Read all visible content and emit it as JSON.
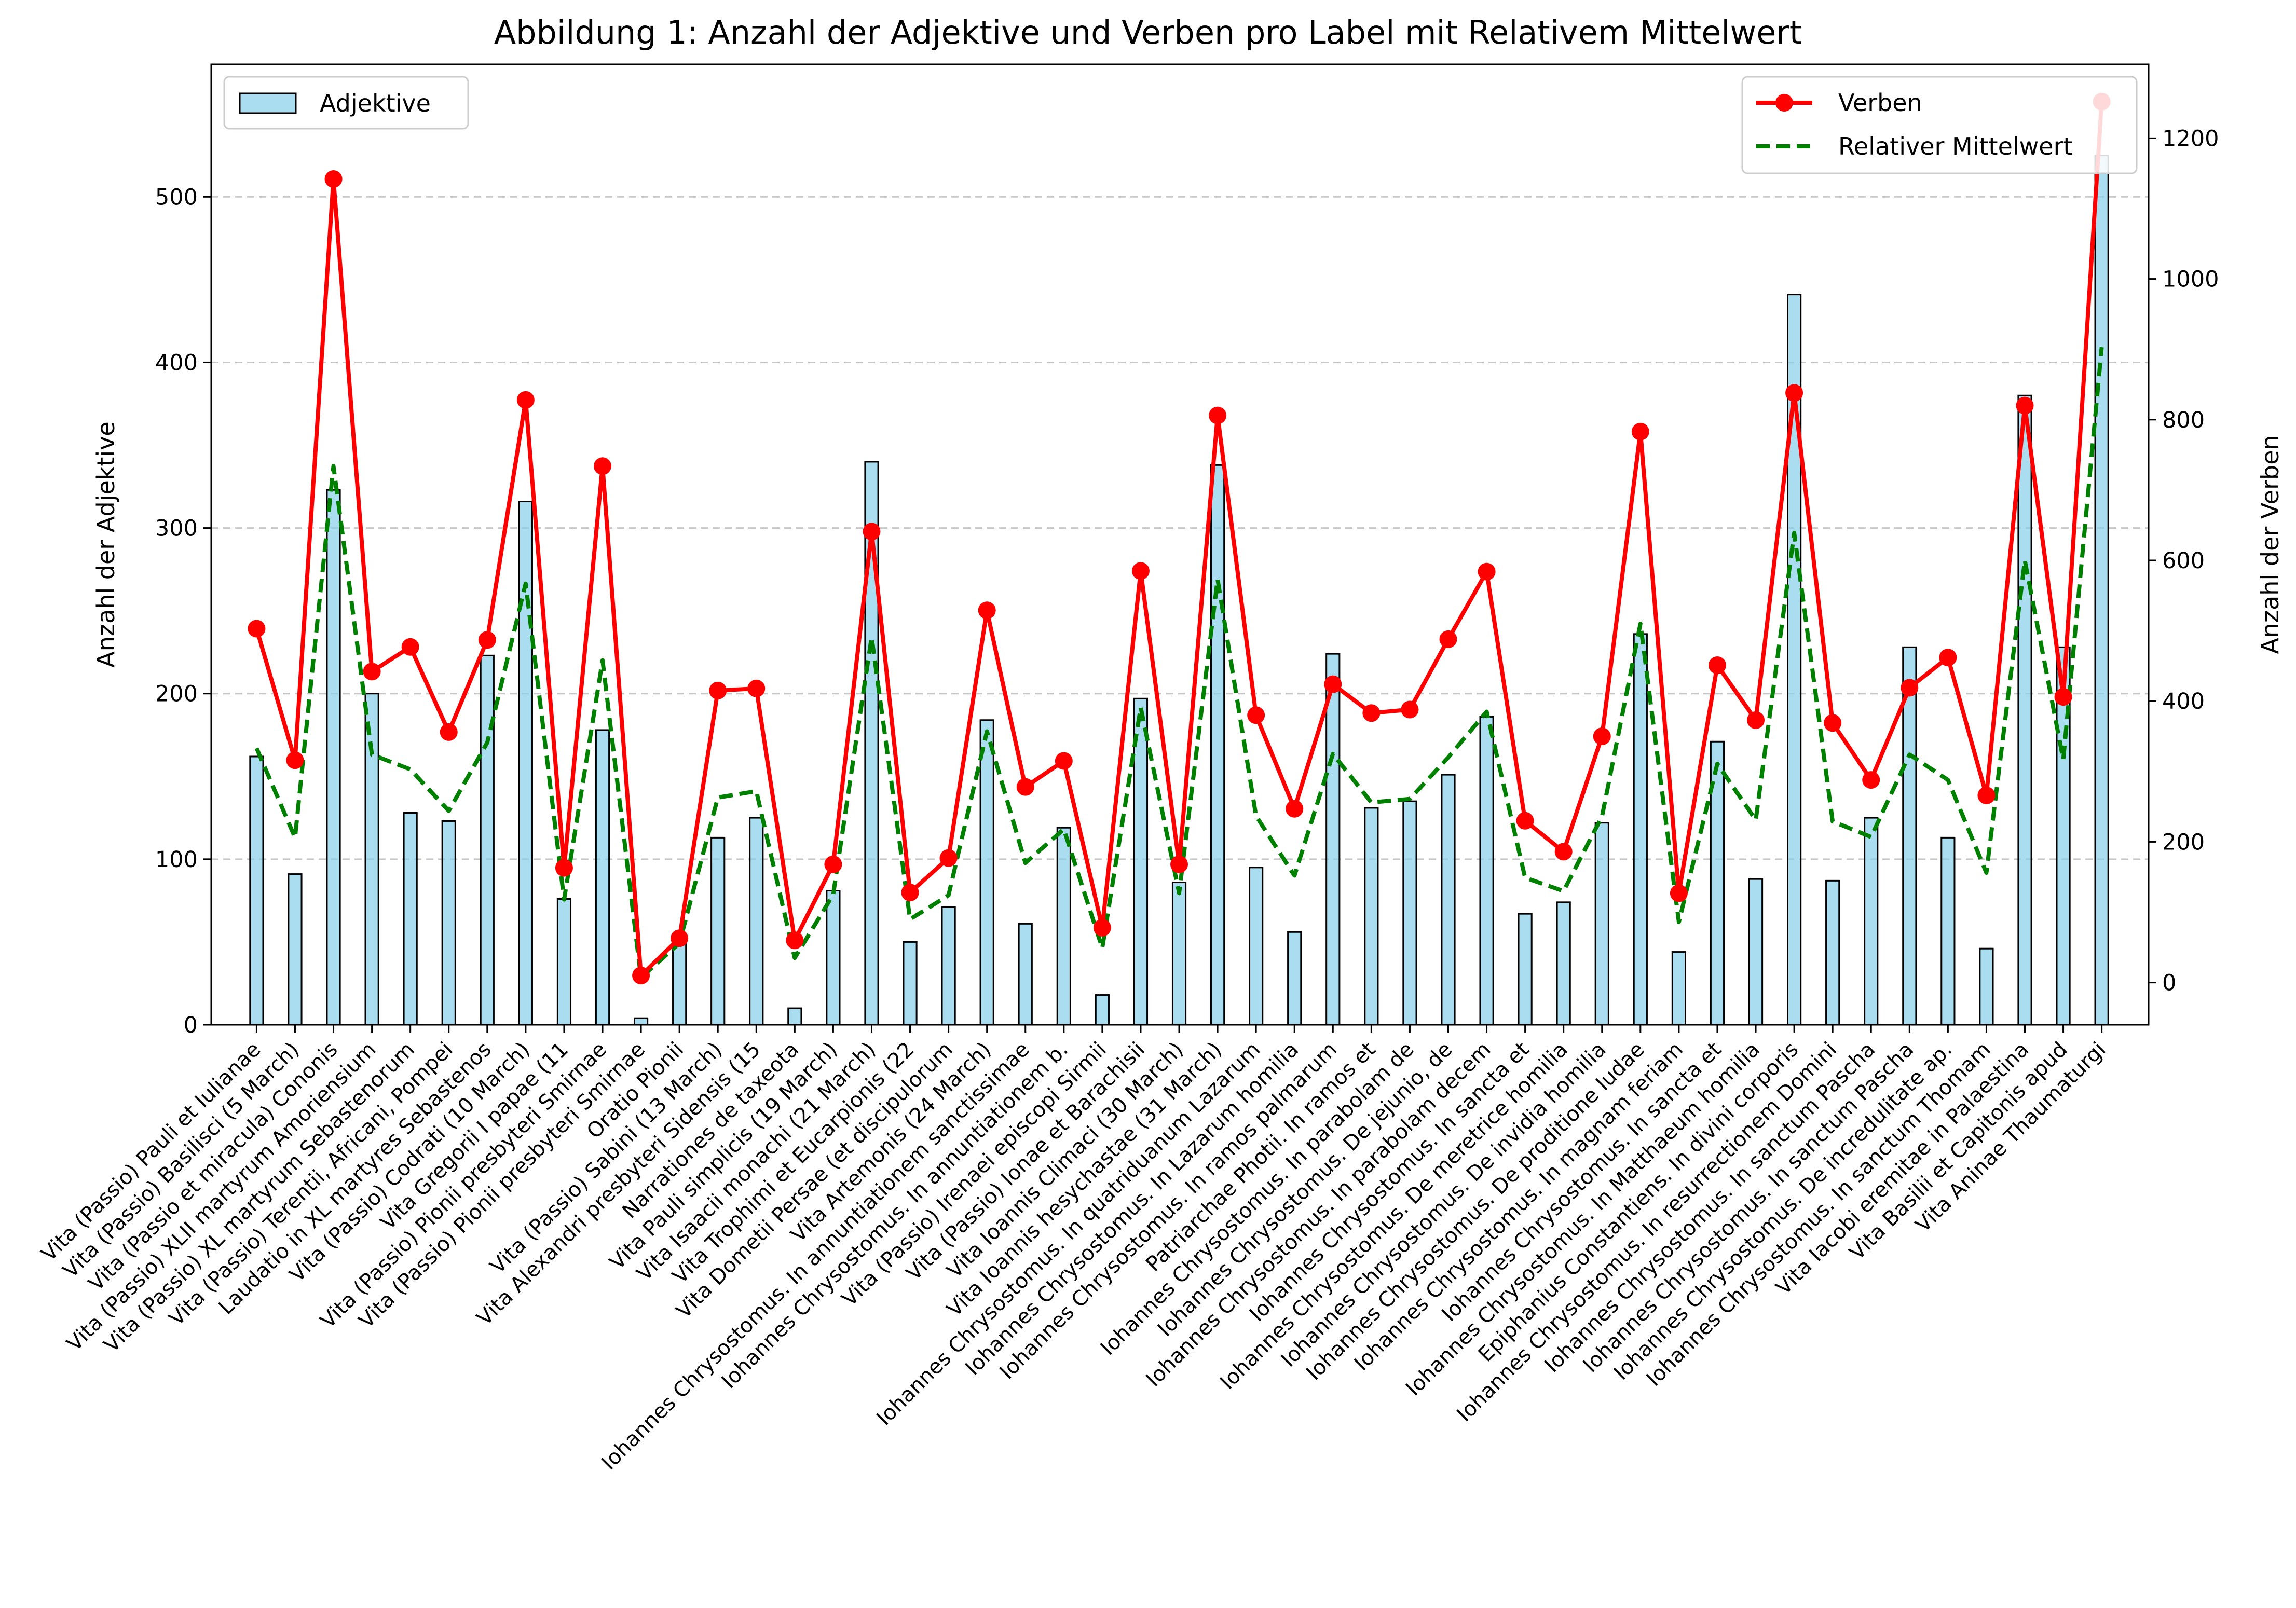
{
  "chart_data": {
    "type": "bar",
    "title": "Abbildung 1: Anzahl der Adjektive und Verben pro Label mit Relativem Mittelwert",
    "ylabel": "Anzahl der Adjektive",
    "y2label": "Anzahl der Verben",
    "ylim": [
      0,
      580
    ],
    "y2lim": [
      -60,
      1305
    ],
    "yticks": [
      0,
      100,
      200,
      300,
      400,
      500
    ],
    "y2ticks": [
      0,
      200,
      400,
      600,
      800,
      1000,
      1200
    ],
    "grid": "y-dashed",
    "legend_left": "top-left",
    "legend_right": "top-right",
    "categories": [
      "Vita (Passio) Pauli et Iulianae",
      "Vita (Passio) Basilisci (5 March)",
      "Vita (Passio et miracula) Cononis",
      "Vita (Passio) XLII martyrum Amoriensium",
      "Vita (Passio) XL martyrum Sebastenorum",
      "Vita (Passio) Terentii, Africani, Pompei",
      "Laudatio in XL martyres Sebastenos",
      "Vita (Passio) Codrati (10 March)",
      "Vita Gregorii I papae (11",
      "Vita (Passio) Pionii presbyteri Smirnae",
      "Vita (Passio) Pionii presbyteri Smirnae",
      "Oratio Pionii",
      "Vita (Passio) Sabini (13 March)",
      "Vita Alexandri presbyteri Sidensis (15",
      "Narrationes de taxeota",
      "Vita Pauli simplicis (19 March)",
      "Vita Isaacii monachi (21 March)",
      "Vita Trophimi et Eucarpionis (22",
      "Vita Dometii Persae (et discipulorum",
      "Vita Artemonis (24 March)",
      "Iohannes Chrysostomus. In annuntiationem sanctissimae",
      "Iohannes Chrysostomus. In annuntiationem b.",
      "Vita (Passio) Irenaei episcopi Sirmii",
      "Vita (Passio) Ionae et Barachisii",
      "Vita Ioannis Climaci (30 March)",
      "Vita Ioannis hesychastae (31 March)",
      "Iohannes Chrysostomus. In quatriduanum Lazarum",
      "Iohannes Chrysostomus. In Lazarum homilia",
      "Iohannes Chrysostomus. In ramos palmarum",
      "Patriarchae Photii. In ramos et",
      "Iohannes Chrysostomus. In parabolam de",
      "Iohannes Chrysostomus. De jejunio, de",
      "Iohannes Chrysostomus. In parabolam decem",
      "Iohannes Chrysostomus. In sancta et",
      "Iohannes Chrysostomus. De meretrice homilia",
      "Iohannes Chrysostomus. De invidia homilia",
      "Iohannes Chrysostomus. De proditione Iudae",
      "Iohannes Chrysostomus. In magnam feriam",
      "Iohannes Chrysostomus. In sancta et",
      "Iohannes Chrysostomus. In Matthaeum homilia",
      "Epiphanius Constantiens. In divini corporis",
      "Iohannes Chrysostomus. In resurrectionem Domini",
      "Iohannes Chrysostomus. In sanctum Pascha",
      "Iohannes Chrysostomus. In sanctum Pascha",
      "Iohannes Chrysostomus. De incredulitate ap.",
      "Iohannes Chrysostomus. In sanctum Thomam",
      "Vita Iacobi eremitae in Palaestina",
      "Vita Basilii et Capitonis apud",
      "Vita Aninae Thaumaturgi"
    ],
    "series": [
      {
        "name": "Adjektive",
        "type": "bar",
        "axis": "left",
        "color": "#87ceeb",
        "values": [
          162,
          91,
          323,
          200,
          128,
          123,
          223,
          316,
          76,
          178,
          4,
          50,
          113,
          125,
          10,
          81,
          340,
          50,
          71,
          184,
          61,
          119,
          18,
          197,
          86,
          338,
          95,
          56,
          224,
          131,
          135,
          151,
          186,
          67,
          74,
          122,
          236,
          44,
          171,
          88,
          441,
          87,
          125,
          228,
          113,
          46,
          380,
          228,
          525
        ]
      },
      {
        "name": "Verben",
        "type": "line",
        "axis": "right",
        "color": "#ff0000",
        "values": [
          503,
          316,
          1142,
          442,
          477,
          356,
          487,
          828,
          163,
          734,
          10,
          63,
          415,
          418,
          60,
          168,
          641,
          128,
          177,
          529,
          278,
          315,
          78,
          585,
          168,
          806,
          380,
          247,
          424,
          383,
          388,
          488,
          584,
          230,
          186,
          350,
          783,
          127,
          451,
          373,
          838,
          369,
          288,
          419,
          462,
          266,
          820,
          406,
          1252
        ]
      },
      {
        "name": "Relativer Mittelwert",
        "type": "line",
        "axis": "right",
        "style": "dashed",
        "color": "#008000",
        "values": [
          333,
          206,
          734,
          324,
          303,
          244,
          341,
          567,
          118,
          458,
          7,
          56,
          263,
          272,
          35,
          125,
          491,
          90,
          124,
          357,
          170,
          218,
          49,
          391,
          127,
          573,
          237,
          152,
          325,
          256,
          261,
          320,
          385,
          149,
          130,
          236,
          510,
          86,
          311,
          231,
          639,
          229,
          207,
          324,
          288,
          156,
          600,
          317,
          903
        ]
      }
    ]
  }
}
